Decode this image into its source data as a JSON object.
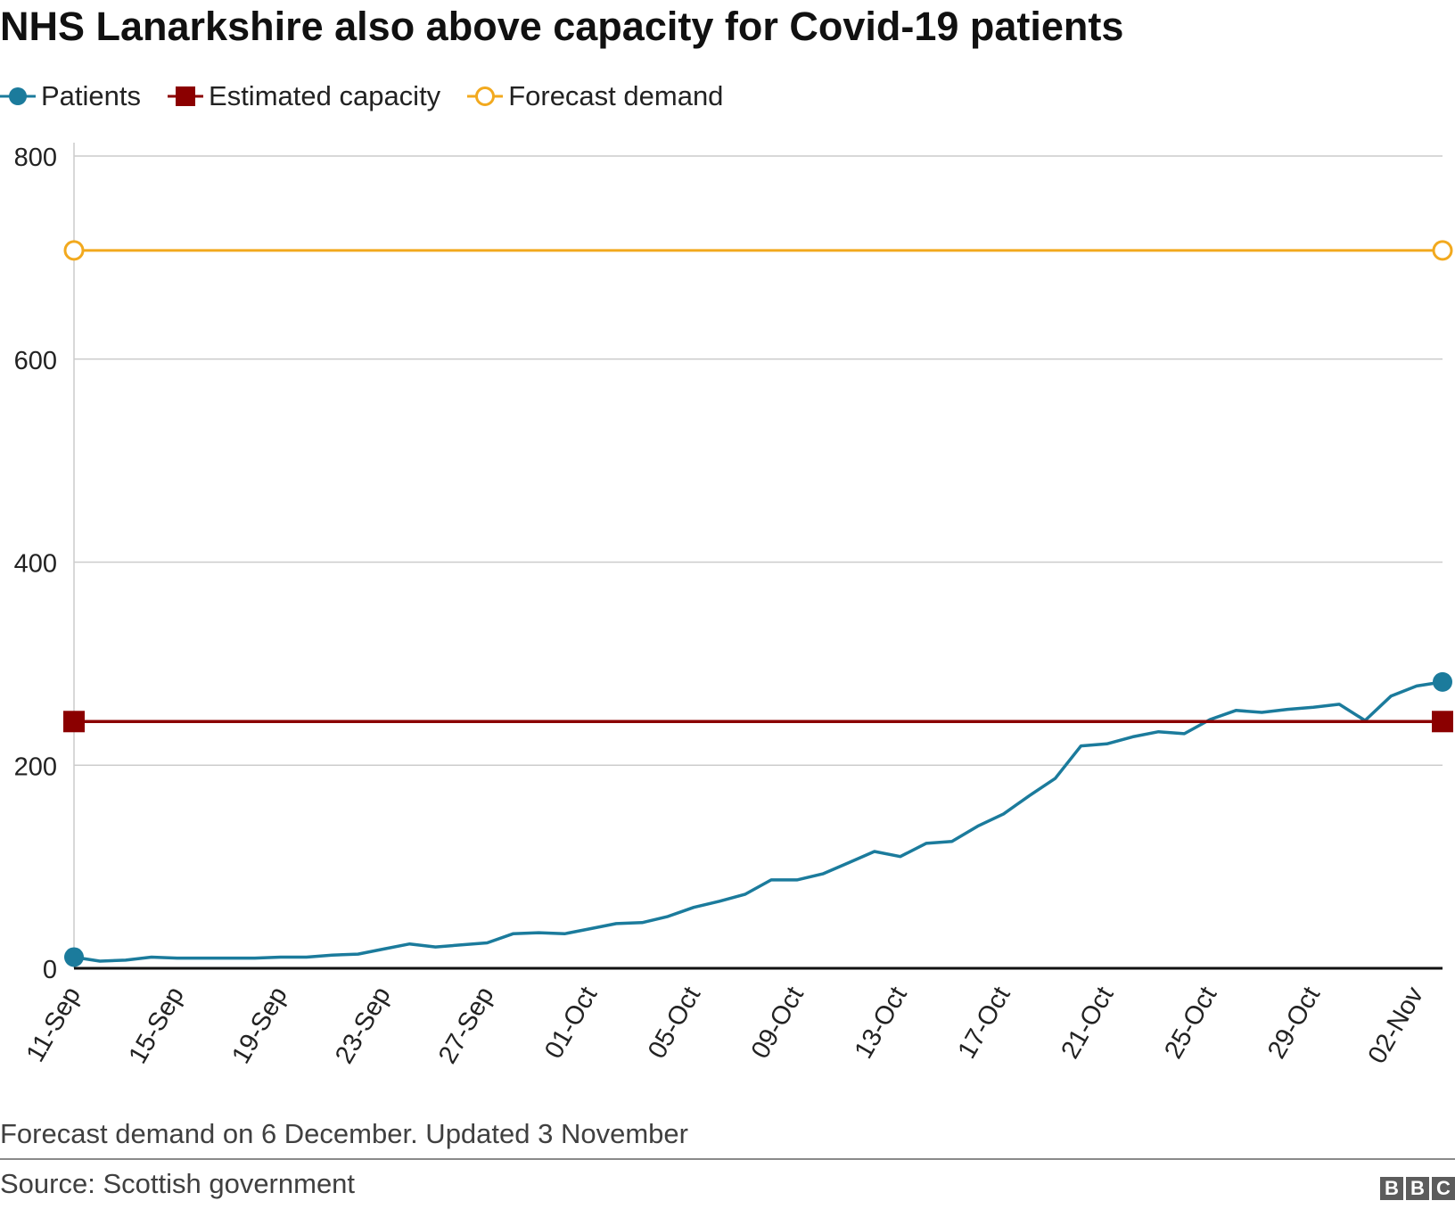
{
  "title": "NHS Lanarkshire also above capacity for Covid-19 patients",
  "legend": {
    "patients": "Patients",
    "capacity": "Estimated capacity",
    "forecast": "Forecast demand"
  },
  "colors": {
    "patients": "#1b7b9c",
    "capacity": "#8b0000",
    "forecast": "#f2a91e",
    "grid": "#cccccc",
    "baseline": "#111111",
    "text": "#222222"
  },
  "footer": {
    "note": "Forecast demand on 6 December. Updated 3 November",
    "source": "Source: Scottish government",
    "logo": [
      "B",
      "B",
      "C"
    ]
  },
  "chart_data": {
    "type": "line",
    "title": "NHS Lanarkshire also above capacity for Covid-19 patients",
    "xlabel": "",
    "ylabel": "",
    "ylim": [
      0,
      800
    ],
    "yticks": [
      0,
      200,
      400,
      600,
      800
    ],
    "x_start": "11-Sep",
    "x_end": "02-Nov",
    "x_tick_labels": [
      "11-Sep",
      "15-Sep",
      "19-Sep",
      "23-Sep",
      "27-Sep",
      "01-Oct",
      "05-Oct",
      "09-Oct",
      "13-Oct",
      "17-Oct",
      "21-Oct",
      "25-Oct",
      "29-Oct",
      "02-Nov"
    ],
    "grid": true,
    "legend_position": "top-left",
    "series": [
      {
        "name": "Patients",
        "day_index": [
          0,
          1,
          2,
          3,
          4,
          5,
          6,
          7,
          8,
          9,
          10,
          11,
          12,
          13,
          14,
          15,
          16,
          17,
          18,
          19,
          20,
          21,
          22,
          23,
          24,
          25,
          26,
          27,
          28,
          29,
          30,
          31,
          32,
          33,
          34,
          35,
          36,
          37,
          38,
          39,
          40,
          41,
          42,
          43,
          44,
          45,
          46,
          47,
          48,
          49,
          50,
          51,
          52,
          53
        ],
        "values": [
          11,
          7,
          8,
          11,
          10,
          10,
          10,
          10,
          11,
          11,
          13,
          14,
          19,
          24,
          21,
          23,
          25,
          34,
          35,
          34,
          39,
          44,
          45,
          51,
          60,
          66,
          73,
          87,
          87,
          93,
          104,
          115,
          110,
          123,
          125,
          140,
          152,
          170,
          187,
          219,
          221,
          228,
          233,
          231,
          245,
          254,
          252,
          255,
          257,
          260,
          244,
          268,
          278,
          282
        ]
      },
      {
        "name": "Estimated capacity",
        "day_index": [
          0,
          53
        ],
        "values": [
          243,
          243
        ]
      },
      {
        "name": "Forecast demand",
        "day_index": [
          0,
          53
        ],
        "values": [
          707,
          707
        ]
      }
    ]
  }
}
